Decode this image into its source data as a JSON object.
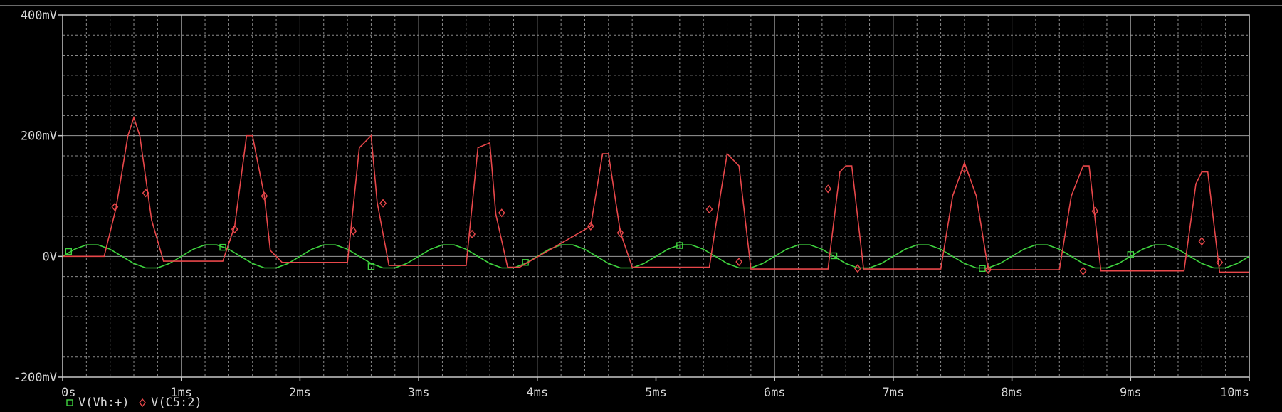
{
  "chart_data": {
    "type": "line",
    "title": "",
    "xlabel": "",
    "ylabel": "",
    "xlim": [
      0,
      10
    ],
    "ylim": [
      -200,
      400
    ],
    "x_ticks": [
      {
        "value": 0,
        "label": "0s"
      },
      {
        "value": 1,
        "label": "1ms"
      },
      {
        "value": 2,
        "label": "2ms"
      },
      {
        "value": 3,
        "label": "3ms"
      },
      {
        "value": 4,
        "label": "4ms"
      },
      {
        "value": 5,
        "label": "5ms"
      },
      {
        "value": 6,
        "label": "6ms"
      },
      {
        "value": 7,
        "label": "7ms"
      },
      {
        "value": 8,
        "label": "8ms"
      },
      {
        "value": 9,
        "label": "9ms"
      },
      {
        "value": 10,
        "label": "10ms"
      }
    ],
    "y_ticks": [
      {
        "value": -200,
        "label": "-200mV"
      },
      {
        "value": 0,
        "label": "0V"
      },
      {
        "value": 200,
        "label": "200mV"
      },
      {
        "value": 400,
        "label": "400mV"
      }
    ],
    "grid": true,
    "legend_position": "bottom-left",
    "colors": {
      "background": "#000000",
      "axis": "#c8c8c8",
      "grid_major": "#9a9a9a",
      "grid_minor": "#8a8a8a",
      "text": "#d8d8d8"
    },
    "series": [
      {
        "name": "V(Vh:+)",
        "color": "#3fd43f",
        "marker": "square",
        "x": [
          0,
          0.1,
          0.2,
          0.3,
          0.4,
          0.5,
          0.6,
          0.7,
          0.8,
          0.9,
          1.0,
          1.1,
          1.2,
          1.3,
          1.4,
          1.5,
          1.6,
          1.7,
          1.8,
          1.9,
          2.0,
          2.1,
          2.2,
          2.3,
          2.4,
          2.5,
          2.6,
          2.7,
          2.8,
          2.9,
          3.0,
          3.1,
          3.2,
          3.3,
          3.4,
          3.5,
          3.6,
          3.7,
          3.8,
          3.9,
          4.0,
          4.1,
          4.2,
          4.3,
          4.4,
          4.5,
          4.6,
          4.7,
          4.8,
          4.9,
          5.0,
          5.1,
          5.2,
          5.3,
          5.4,
          5.5,
          5.6,
          5.7,
          5.8,
          5.9,
          6.0,
          6.1,
          6.2,
          6.3,
          6.4,
          6.5,
          6.6,
          6.7,
          6.8,
          6.9,
          7.0,
          7.1,
          7.2,
          7.3,
          7.4,
          7.5,
          7.6,
          7.7,
          7.8,
          7.9,
          8.0,
          8.1,
          8.2,
          8.3,
          8.4,
          8.5,
          8.6,
          8.7,
          8.8,
          8.9,
          9.0,
          9.1,
          9.2,
          9.3,
          9.4,
          9.5,
          9.6,
          9.7,
          9.8,
          9.9,
          10.0
        ],
        "values": [
          0,
          11.8,
          19.0,
          19.0,
          11.8,
          0,
          -11.8,
          -19.0,
          -19.0,
          -11.8,
          0,
          11.8,
          19.0,
          19.0,
          11.8,
          0,
          -11.8,
          -19.0,
          -19.0,
          -11.8,
          0,
          11.8,
          19.0,
          19.0,
          11.8,
          0,
          -11.8,
          -19.0,
          -19.0,
          -11.8,
          0,
          11.8,
          19.0,
          19.0,
          11.8,
          0,
          -11.8,
          -19.0,
          -19.0,
          -11.8,
          0,
          11.8,
          19.0,
          19.0,
          11.8,
          0,
          -11.8,
          -19.0,
          -19.0,
          -11.8,
          0,
          11.8,
          19.0,
          19.0,
          11.8,
          0,
          -11.8,
          -19.0,
          -19.0,
          -11.8,
          0,
          11.8,
          19.0,
          19.0,
          11.8,
          0,
          -11.8,
          -19.0,
          -19.0,
          -11.8,
          0,
          11.8,
          19.0,
          19.0,
          11.8,
          0,
          -11.8,
          -19.0,
          -19.0,
          -11.8,
          0,
          11.8,
          19.0,
          19.0,
          11.8,
          0,
          -11.8,
          -19.0,
          -19.0,
          -11.8,
          0,
          11.8,
          19.0,
          19.0,
          11.8,
          0,
          -11.8,
          -19.0,
          -19.0,
          -11.8,
          0
        ],
        "markers": [
          [
            0.05,
            8
          ],
          [
            1.35,
            15
          ],
          [
            2.6,
            -17
          ],
          [
            3.9,
            -10
          ],
          [
            5.2,
            18
          ],
          [
            6.5,
            1
          ],
          [
            7.75,
            -20
          ],
          [
            9.0,
            3
          ]
        ]
      },
      {
        "name": "V(C5:2)",
        "color": "#e8474a",
        "marker": "diamond",
        "x": [
          0,
          0.35,
          0.45,
          0.55,
          0.6,
          0.65,
          0.75,
          0.85,
          1.35,
          1.45,
          1.55,
          1.6,
          1.7,
          1.75,
          1.85,
          2.4,
          2.5,
          2.6,
          2.65,
          2.75,
          2.85,
          3.4,
          3.5,
          3.6,
          3.65,
          3.75,
          3.85,
          4.45,
          4.55,
          4.6,
          4.7,
          4.8,
          5.45,
          5.55,
          5.6,
          5.7,
          5.8,
          6.45,
          6.55,
          6.6,
          6.65,
          6.75,
          7.4,
          7.5,
          7.6,
          7.7,
          7.8,
          8.4,
          8.5,
          8.6,
          8.65,
          8.75,
          9.45,
          9.55,
          9.6,
          9.65,
          9.75,
          10.0
        ],
        "values": [
          0,
          0,
          80,
          200,
          230,
          200,
          60,
          -8,
          -8,
          50,
          200,
          200,
          100,
          10,
          -10,
          -10,
          180,
          200,
          90,
          -15,
          -15,
          -15,
          180,
          188,
          70,
          -18,
          -18,
          50,
          170,
          170,
          40,
          -18,
          -18,
          110,
          170,
          150,
          -21,
          -21,
          140,
          150,
          150,
          -21,
          -21,
          100,
          155,
          100,
          -22,
          -22,
          100,
          150,
          150,
          -24,
          -24,
          120,
          140,
          140,
          -26,
          -26
        ],
        "markers": [
          [
            0.44,
            82
          ],
          [
            0.7,
            105
          ],
          [
            1.45,
            45
          ],
          [
            1.7,
            100
          ],
          [
            2.45,
            42
          ],
          [
            2.7,
            88
          ],
          [
            3.45,
            37
          ],
          [
            3.7,
            72
          ],
          [
            4.45,
            50
          ],
          [
            4.7,
            39
          ],
          [
            5.45,
            78
          ],
          [
            5.7,
            -9
          ],
          [
            6.45,
            112
          ],
          [
            6.7,
            -20
          ],
          [
            7.6,
            145
          ],
          [
            7.8,
            -22
          ],
          [
            8.6,
            -24
          ],
          [
            8.7,
            75
          ],
          [
            9.6,
            25
          ],
          [
            9.75,
            -10
          ]
        ]
      }
    ]
  }
}
